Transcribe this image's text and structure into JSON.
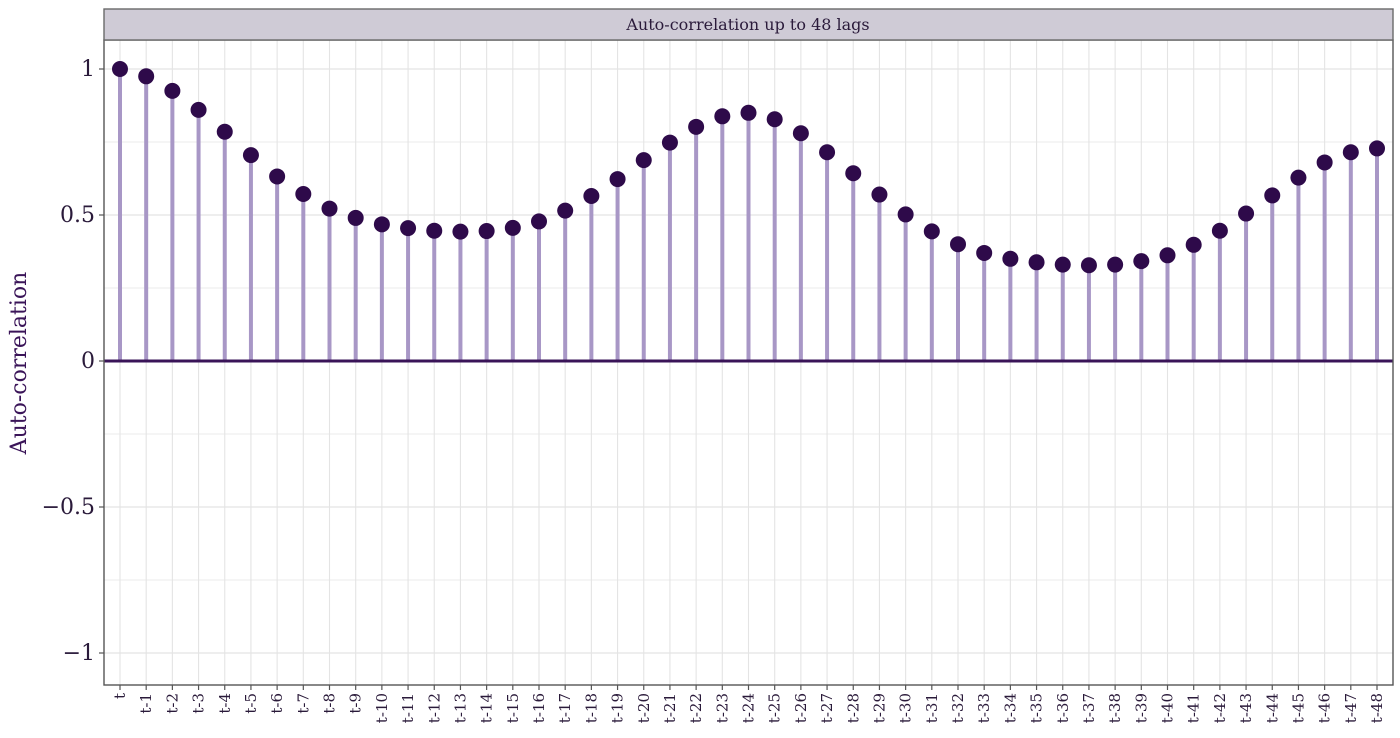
{
  "chart_data": {
    "type": "lollipop",
    "title": "Auto-correlation up to 48 lags",
    "ylabel": "Auto-correlation",
    "xlabel": "",
    "ylim": [
      -1.1,
      1.1
    ],
    "yticks": [
      1,
      0.5,
      0,
      -0.5,
      -1
    ],
    "ytick_labels": [
      "1",
      "0.5",
      "0",
      "−0.5",
      "−1"
    ],
    "grid": true,
    "categories": [
      "t",
      "t-1",
      "t-2",
      "t-3",
      "t-4",
      "t-5",
      "t-6",
      "t-7",
      "t-8",
      "t-9",
      "t-10",
      "t-11",
      "t-12",
      "t-13",
      "t-14",
      "t-15",
      "t-16",
      "t-17",
      "t-18",
      "t-19",
      "t-20",
      "t-21",
      "t-22",
      "t-23",
      "t-24",
      "t-25",
      "t-26",
      "t-27",
      "t-28",
      "t-29",
      "t-30",
      "t-31",
      "t-32",
      "t-33",
      "t-34",
      "t-35",
      "t-36",
      "t-37",
      "t-38",
      "t-39",
      "t-40",
      "t-41",
      "t-42",
      "t-43",
      "t-44",
      "t-45",
      "t-46",
      "t-47",
      "t-48"
    ],
    "values": [
      1.0,
      0.975,
      0.925,
      0.86,
      0.785,
      0.705,
      0.632,
      0.572,
      0.522,
      0.49,
      0.468,
      0.455,
      0.446,
      0.443,
      0.445,
      0.456,
      0.478,
      0.515,
      0.565,
      0.623,
      0.688,
      0.748,
      0.802,
      0.838,
      0.85,
      0.828,
      0.78,
      0.715,
      0.643,
      0.57,
      0.502,
      0.444,
      0.4,
      0.37,
      0.35,
      0.338,
      0.33,
      0.328,
      0.33,
      0.342,
      0.362,
      0.398,
      0.446,
      0.505,
      0.567,
      0.628,
      0.68,
      0.715,
      0.728
    ],
    "colors": {
      "stem": "#a897c6",
      "point": "#2e0a4a",
      "zero_line": "#3a1458",
      "strip_fill": "#cfcbd6",
      "strip_border": "#6a6a6a",
      "grid": "#e4e4e4"
    }
  }
}
